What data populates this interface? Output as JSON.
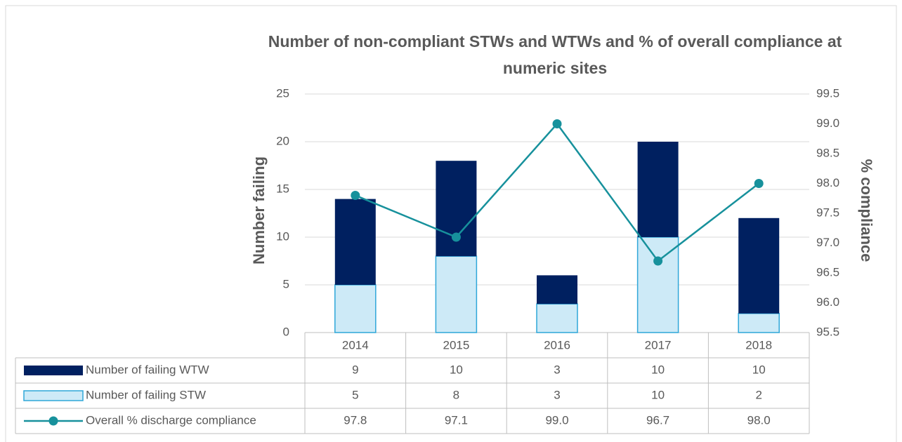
{
  "chart_data": {
    "type": "bar",
    "title": "Number of non-compliant STWs and WTWs and % of overall compliance at numeric sites",
    "title_lines": [
      "Number of non-compliant STWs and WTWs and % of overall compliance at",
      "numeric sites"
    ],
    "ylabel": "Number failing",
    "y2label": "% compliance",
    "categories": [
      "2014",
      "2015",
      "2016",
      "2017",
      "2018"
    ],
    "stacked": true,
    "grid": true,
    "data_table": true,
    "series": [
      {
        "name": "Number of failing WTW",
        "color": "#002060",
        "type": "bar",
        "values": [
          9,
          10,
          3,
          10,
          10
        ]
      },
      {
        "name": "Number of failing STW",
        "color": "#cdeaf7",
        "edge": "#2fa7d9",
        "type": "bar",
        "values": [
          5,
          8,
          3,
          10,
          2
        ]
      },
      {
        "name": "Overall % discharge compliance",
        "color": "#17919c",
        "type": "line",
        "axis": "y2",
        "values": [
          97.8,
          97.1,
          99.0,
          96.7,
          98.0
        ],
        "value_labels": [
          "97.8",
          "97.1",
          "99.0",
          "96.7",
          "98.0"
        ]
      }
    ],
    "ylim": [
      0,
      25
    ],
    "yticks": [
      0,
      5,
      10,
      15,
      20,
      25
    ],
    "y2lim": [
      95.5,
      99.5
    ],
    "y2ticks": [
      95.5,
      {
        "value": 96,
        "label": "96.0"
      },
      96.5,
      {
        "value": 97,
        "label": "97.0"
      },
      97.5,
      {
        "value": 98,
        "label": "98.0"
      },
      98.5,
      {
        "value": 99,
        "label": "99.0"
      },
      99.5
    ]
  }
}
